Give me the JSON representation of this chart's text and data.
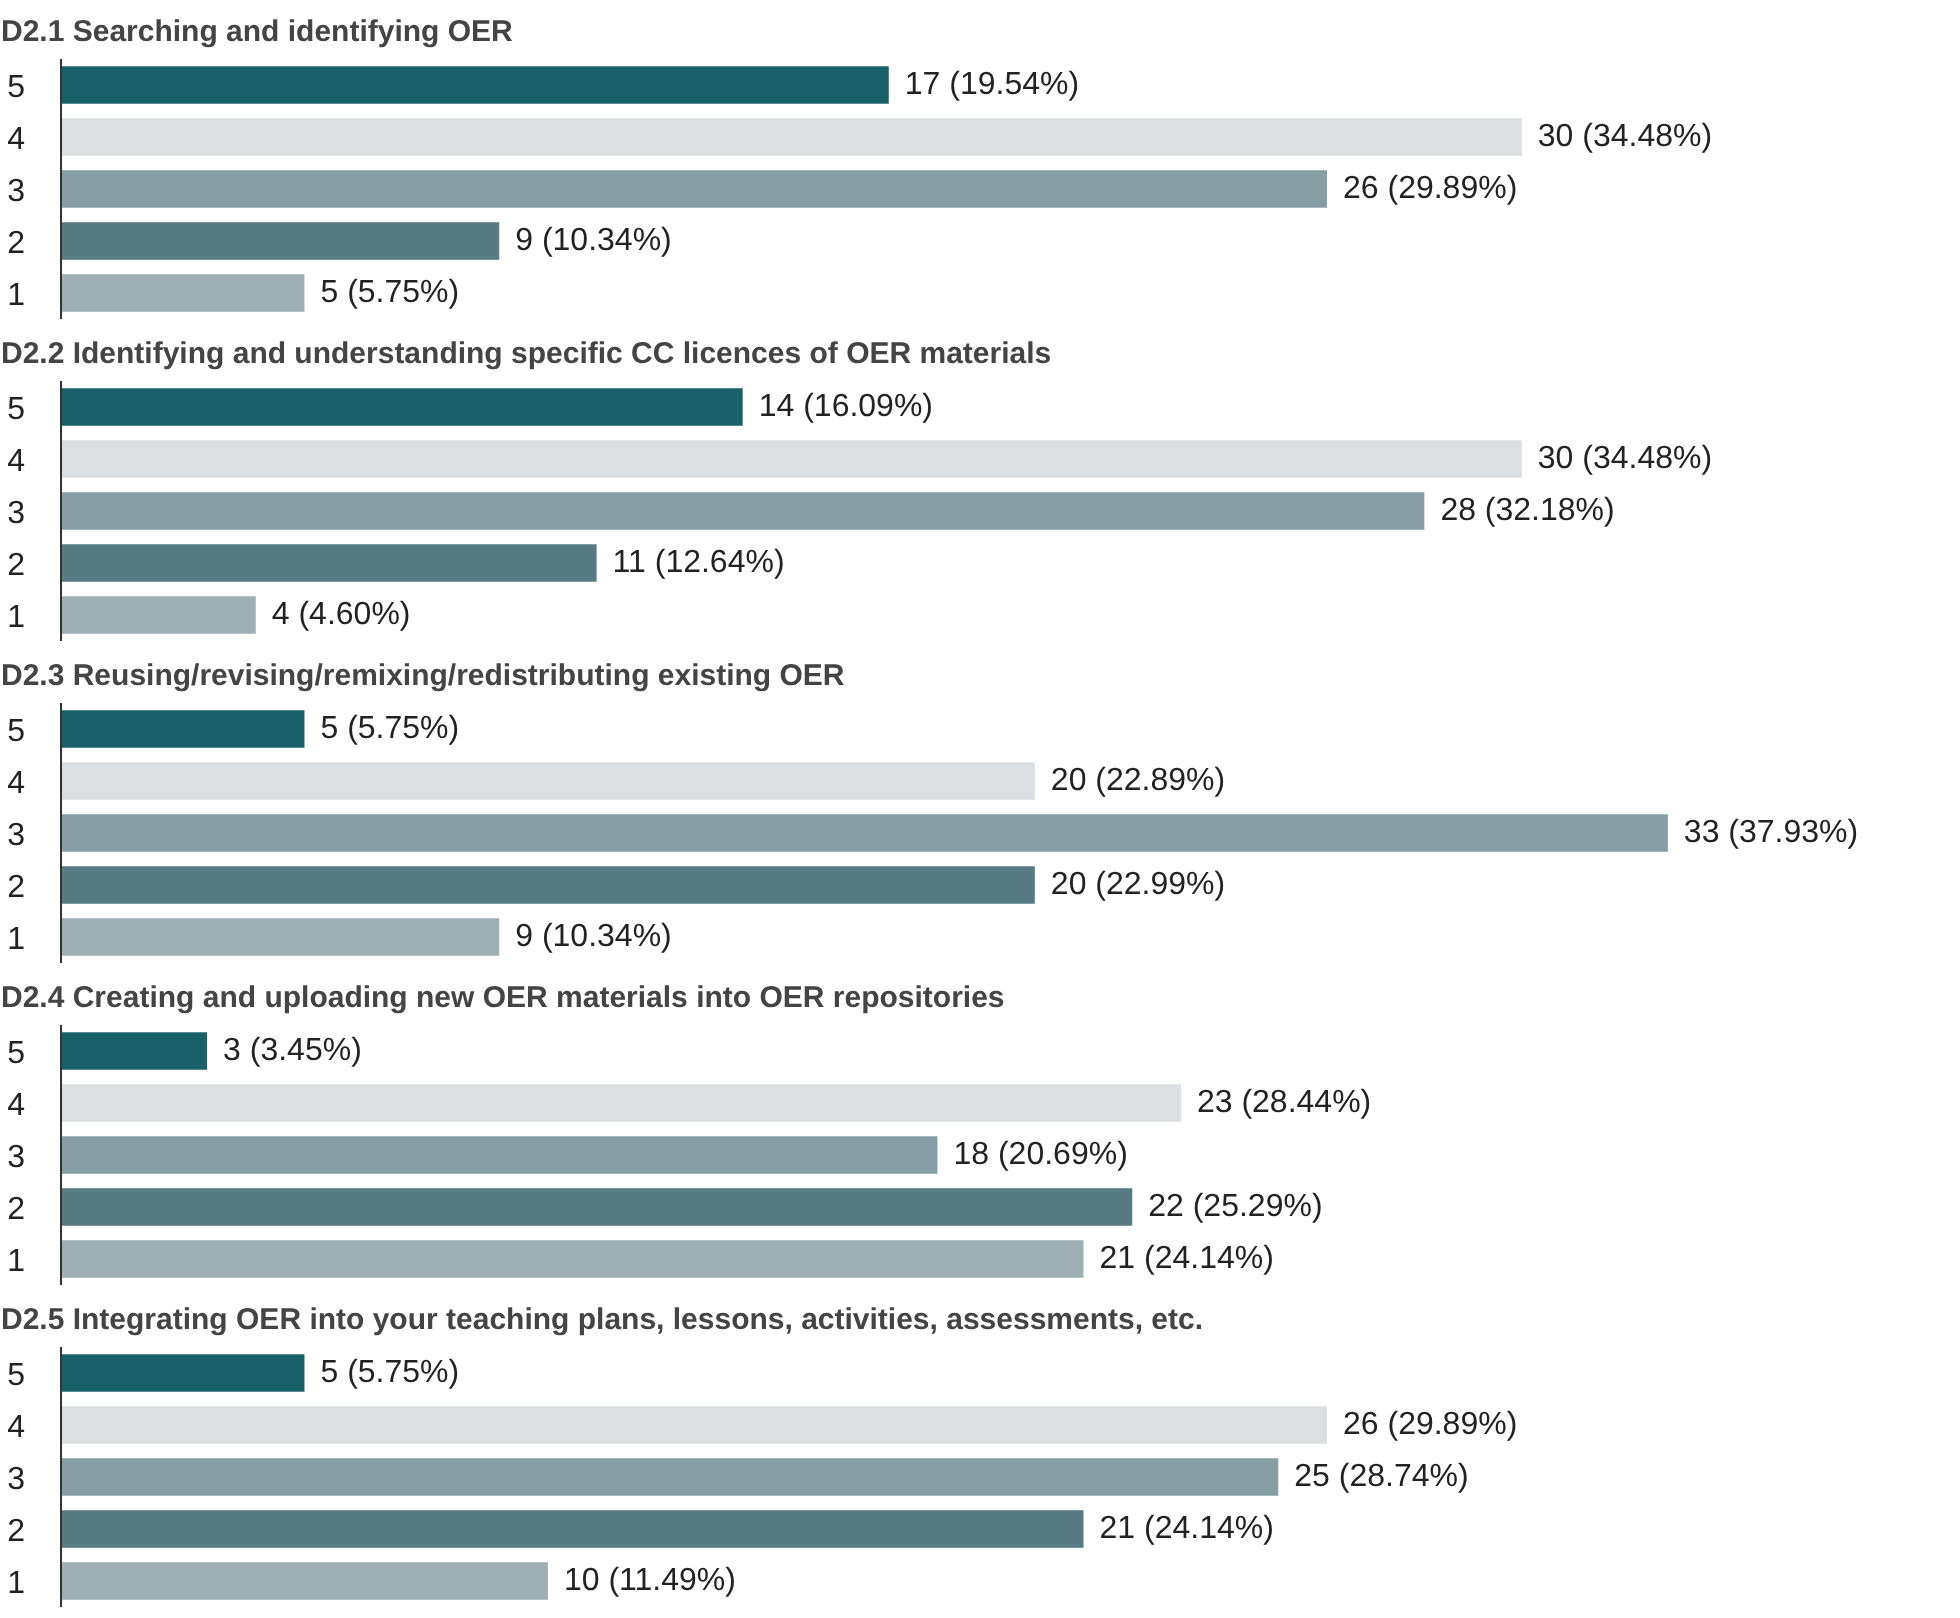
{
  "chart_data": [
    {
      "type": "bar",
      "orientation": "horizontal",
      "title": "D2.1 Searching and identifying OER",
      "categories": [
        "5",
        "4",
        "3",
        "2",
        "1"
      ],
      "values": [
        17,
        30,
        26,
        9,
        5
      ],
      "value_labels": [
        "17 (19.54%)",
        "30 (34.48%)",
        "26 (29.89%)",
        "9 (10.34%)",
        "5 (5.75%)"
      ],
      "colors": [
        "#1a6068",
        "#dcdfe2",
        "#879ea4",
        "#577b82",
        "#9fb0b5"
      ],
      "tick_labels": "y",
      "grid": false,
      "legend": false
    },
    {
      "type": "bar",
      "orientation": "horizontal",
      "title": "D2.2 Identifying and understanding specific CC licences of OER materials",
      "categories": [
        "5",
        "4",
        "3",
        "2",
        "1"
      ],
      "values": [
        14,
        30,
        28,
        11,
        4
      ],
      "value_labels": [
        "14 (16.09%)",
        "30 (34.48%)",
        "28 (32.18%)",
        "11 (12.64%)",
        "4 (4.60%)"
      ],
      "colors": [
        "#1a6068",
        "#dcdfe2",
        "#879ea4",
        "#577b82",
        "#9fb0b5"
      ],
      "tick_labels": "y",
      "grid": false,
      "legend": false
    },
    {
      "type": "bar",
      "orientation": "horizontal",
      "title": "D2.3 Reusing/revising/remixing/redistributing existing OER",
      "categories": [
        "5",
        "4",
        "3",
        "2",
        "1"
      ],
      "values": [
        5,
        20,
        33,
        20,
        9
      ],
      "value_labels": [
        "5 (5.75%)",
        "20 (22.89%)",
        "33 (37.93%)",
        "20 (22.99%)",
        "9 (10.34%)"
      ],
      "colors": [
        "#1a6068",
        "#dcdfe2",
        "#879ea4",
        "#577b82",
        "#9fb0b5"
      ],
      "tick_labels": "y",
      "grid": false,
      "legend": false
    },
    {
      "type": "bar",
      "orientation": "horizontal",
      "title": "D2.4 Creating and uploading new OER materials into OER repositories",
      "categories": [
        "5",
        "4",
        "3",
        "2",
        "1"
      ],
      "values": [
        3,
        23,
        18,
        22,
        21
      ],
      "value_labels": [
        "3 (3.45%)",
        "23 (28.44%)",
        "18 (20.69%)",
        "22 (25.29%)",
        "21 (24.14%)"
      ],
      "colors": [
        "#1a6068",
        "#dcdfe2",
        "#879ea4",
        "#577b82",
        "#9fb0b5"
      ],
      "tick_labels": "y",
      "grid": false,
      "legend": false
    },
    {
      "type": "bar",
      "orientation": "horizontal",
      "title": "D2.5 Integrating OER into your teaching plans, lessons, activities, assessments, etc.",
      "categories": [
        "5",
        "4",
        "3",
        "2",
        "1"
      ],
      "values": [
        5,
        26,
        25,
        21,
        10
      ],
      "value_labels": [
        "5 (5.75%)",
        "26 (29.89%)",
        "25 (28.74%)",
        "21 (24.14%)",
        "10 (11.49%)"
      ],
      "colors": [
        "#1a6068",
        "#dcdfe2",
        "#879ea4",
        "#577b82",
        "#9fb0b5"
      ],
      "tick_labels": "y",
      "grid": false,
      "legend": false
    }
  ]
}
